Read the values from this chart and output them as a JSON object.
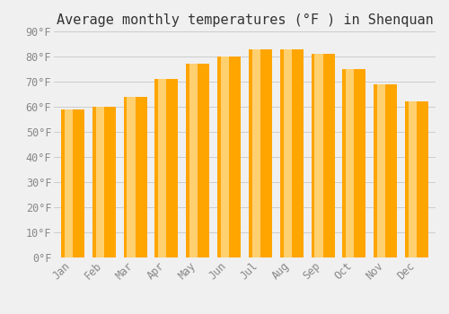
{
  "title": "Average monthly temperatures (°F ) in Shenquan",
  "months": [
    "Jan",
    "Feb",
    "Mar",
    "Apr",
    "May",
    "Jun",
    "Jul",
    "Aug",
    "Sep",
    "Oct",
    "Nov",
    "Dec"
  ],
  "values": [
    59,
    60,
    64,
    71,
    77,
    80,
    83,
    83,
    81,
    75,
    69,
    62
  ],
  "bar_color_main": "#FFA500",
  "bar_color_light": "#FFD070",
  "background_color": "#f0f0f0",
  "ylim": [
    0,
    90
  ],
  "yticks": [
    0,
    10,
    20,
    30,
    40,
    50,
    60,
    70,
    80,
    90
  ],
  "grid_color": "#cccccc",
  "title_fontsize": 11,
  "tick_fontsize": 8.5,
  "font_family": "monospace"
}
